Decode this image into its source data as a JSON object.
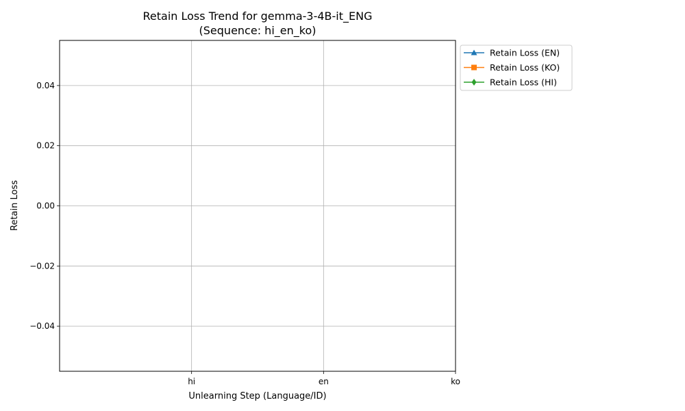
{
  "chart_data": {
    "type": "line",
    "title": "Retain Loss Trend for gemma-3-4B-it_ENG",
    "subtitle": "(Sequence: hi_en_ko)",
    "xlabel": "Unlearning Step (Language/ID)",
    "ylabel": "Retain Loss",
    "categories": [
      "hi",
      "en",
      "ko"
    ],
    "ylim": [
      -0.055,
      0.055
    ],
    "yticks": [
      0.04,
      0.02,
      0.0,
      -0.02,
      -0.04
    ],
    "ytick_labels": [
      "0.04",
      "0.02",
      "0.00",
      "−0.02",
      "−0.04"
    ],
    "grid": true,
    "legend_position": "outside top-right",
    "series": [
      {
        "name": "Retain Loss (EN)",
        "marker": "triangle",
        "color": "#1f77b4",
        "values": [
          null,
          null,
          null
        ]
      },
      {
        "name": "Retain Loss (KO)",
        "marker": "square",
        "color": "#ff7f0e",
        "values": [
          null,
          null,
          null
        ]
      },
      {
        "name": "Retain Loss (HI)",
        "marker": "diamond",
        "color": "#2ca02c",
        "values": [
          null,
          null,
          null
        ]
      }
    ]
  }
}
